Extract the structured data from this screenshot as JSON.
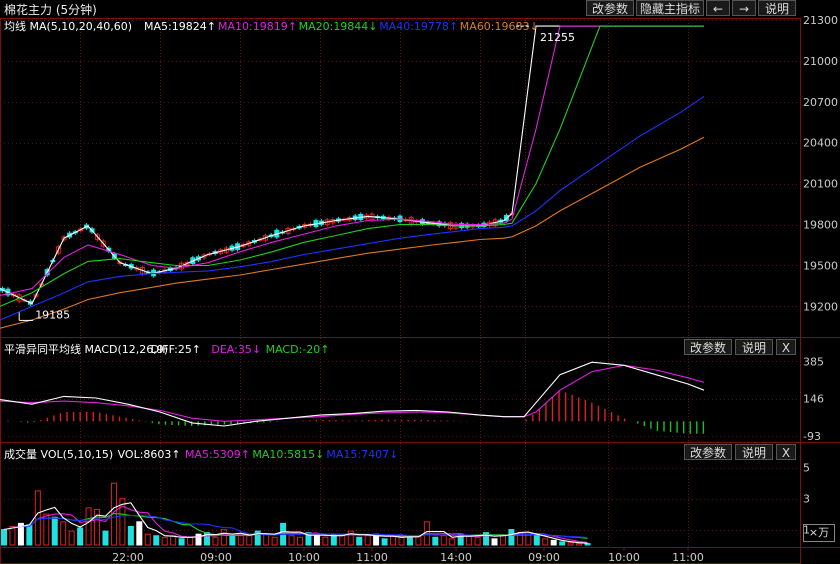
{
  "title": "棉花主力 (5分钟)",
  "toolbar": {
    "params": "改参数",
    "hide": "隐藏主指标",
    "left": "←",
    "right": "→",
    "help": "说明"
  },
  "panel_buttons": {
    "params": "改参数",
    "help": "说明",
    "close": "X"
  },
  "unit_label": "×万",
  "colors": {
    "white": "#ffffff",
    "magenta": "#e020e0",
    "green": "#20d020",
    "blue": "#2030ff",
    "orange": "#e07820",
    "up": "#e02020",
    "down": "#20e0e0",
    "macd_neg": "#20c020"
  },
  "chart_data": [
    {
      "type": "line",
      "name": "均线",
      "legend": [
        {
          "text": "均线 MA(5,10,20,40,60)",
          "color": "#ffffff"
        },
        {
          "text": "MA5:19824↑",
          "color": "#ffffff"
        },
        {
          "text": "MA10:19819↑",
          "color": "#e020e0"
        },
        {
          "text": "MA20:19844↓",
          "color": "#20d020"
        },
        {
          "text": "MA40:19778↑",
          "color": "#2030ff"
        },
        {
          "text": "MA60:19683↓",
          "color": "#e07820"
        }
      ],
      "y_ticks": [
        "21300",
        "21000",
        "20700",
        "20400",
        "20100",
        "19800",
        "19500",
        "19200"
      ],
      "ylim": [
        18990,
        21300
      ],
      "annotations": [
        {
          "text": "19185",
          "x": 0.034,
          "value": 19185
        },
        {
          "text": "21255",
          "x": 0.665,
          "value": 21255
        }
      ],
      "x": [
        0,
        0.04,
        0.08,
        0.11,
        0.15,
        0.19,
        0.22,
        0.26,
        0.3,
        0.34,
        0.38,
        0.42,
        0.46,
        0.5,
        0.54,
        0.57,
        0.6,
        0.63,
        0.64,
        0.67,
        0.7,
        0.75,
        0.8,
        0.85,
        0.88
      ],
      "series": [
        {
          "name": "MA5",
          "color": "#ffffff",
          "values": [
            19330,
            19220,
            19700,
            19790,
            19520,
            19440,
            19480,
            19580,
            19640,
            19720,
            19790,
            19830,
            19860,
            19840,
            19810,
            19790,
            19790,
            19830,
            19880,
            21255,
            21255,
            21255,
            21255,
            21255,
            21255
          ]
        },
        {
          "name": "MA10",
          "color": "#e020e0",
          "values": [
            19280,
            19330,
            19560,
            19650,
            19580,
            19500,
            19480,
            19520,
            19600,
            19670,
            19730,
            19790,
            19830,
            19840,
            19820,
            19800,
            19800,
            19810,
            19840,
            20500,
            21255,
            21255,
            21255,
            21255,
            21255
          ]
        },
        {
          "name": "MA20",
          "color": "#20d020",
          "values": [
            19200,
            19300,
            19440,
            19530,
            19550,
            19520,
            19500,
            19500,
            19540,
            19600,
            19670,
            19720,
            19770,
            19800,
            19800,
            19790,
            19790,
            19800,
            19810,
            20100,
            20500,
            21255,
            21255,
            21255,
            21255
          ]
        },
        {
          "name": "MA40",
          "color": "#2030ff",
          "values": [
            19100,
            19200,
            19300,
            19380,
            19420,
            19440,
            19450,
            19460,
            19490,
            19530,
            19580,
            19620,
            19660,
            19700,
            19730,
            19750,
            19770,
            19780,
            19790,
            19900,
            20050,
            20250,
            20450,
            20620,
            20740
          ]
        },
        {
          "name": "MA60",
          "color": "#e07820",
          "values": [
            19040,
            19100,
            19180,
            19250,
            19300,
            19340,
            19370,
            19400,
            19430,
            19470,
            19510,
            19550,
            19590,
            19620,
            19650,
            19670,
            19690,
            19700,
            19710,
            19790,
            19900,
            20060,
            20220,
            20350,
            20440
          ]
        }
      ]
    },
    {
      "type": "bar",
      "name": "平滑异同平均线",
      "legend": [
        {
          "text": "平滑异同平均线 MACD(12,26,9)",
          "color": "#ffffff"
        },
        {
          "text": "DIFF:25↑",
          "color": "#ffffff"
        },
        {
          "text": "DEA:35↓",
          "color": "#e020e0"
        },
        {
          "text": "MACD:-20↑",
          "color": "#20d020"
        }
      ],
      "y_ticks": [
        "385",
        "146",
        "-93"
      ],
      "ylim": [
        -120,
        420
      ],
      "x": [
        0,
        0.04,
        0.08,
        0.12,
        0.16,
        0.2,
        0.24,
        0.28,
        0.32,
        0.36,
        0.4,
        0.44,
        0.48,
        0.52,
        0.56,
        0.6,
        0.63,
        0.655,
        0.67,
        0.7,
        0.74,
        0.78,
        0.82,
        0.86,
        0.88
      ],
      "series": [
        {
          "name": "DIFF",
          "color": "#ffffff",
          "values": [
            140,
            110,
            160,
            150,
            110,
            60,
            -10,
            -30,
            0,
            20,
            40,
            50,
            65,
            70,
            60,
            40,
            30,
            30,
            120,
            300,
            380,
            360,
            300,
            240,
            200
          ]
        },
        {
          "name": "DEA",
          "color": "#e020e0",
          "values": [
            130,
            120,
            130,
            120,
            100,
            70,
            20,
            0,
            10,
            20,
            30,
            45,
            55,
            60,
            55,
            40,
            30,
            30,
            60,
            200,
            320,
            360,
            330,
            280,
            250
          ]
        },
        {
          "name": "MACD",
          "color": "#e02020",
          "values": [
            10,
            -10,
            60,
            60,
            20,
            -20,
            -30,
            -20,
            -10,
            0,
            10,
            5,
            10,
            10,
            5,
            0,
            0,
            0,
            60,
            200,
            120,
            20,
            -60,
            -80,
            -80
          ]
        }
      ]
    },
    {
      "type": "bar",
      "name": "成交量",
      "legend": [
        {
          "text": "成交量 VOL(5,10,15)",
          "color": "#ffffff"
        },
        {
          "text": "VOL:8603↑",
          "color": "#ffffff"
        },
        {
          "text": "MA5:5309↑",
          "color": "#e020e0"
        },
        {
          "text": "MA10:5815↓",
          "color": "#20d020"
        },
        {
          "text": "MA15:7407↓",
          "color": "#2030ff"
        }
      ],
      "y_ticks": [
        "5",
        "3",
        "1"
      ],
      "ylim": [
        0,
        5.5
      ],
      "x_ticks": [
        "22:00",
        "09:00",
        "10:00",
        "11:00",
        "14:00",
        "09:00",
        "10:00",
        "11:00"
      ],
      "x_tick_pos": [
        0.16,
        0.27,
        0.38,
        0.465,
        0.57,
        0.68,
        0.78,
        0.86
      ],
      "values": [
        1.0,
        1.2,
        1.4,
        1.3,
        3.5,
        2.0,
        1.8,
        1.5,
        0.9,
        1.1,
        2.4,
        2.3,
        0.9,
        4.0,
        3.0,
        1.2,
        1.5,
        0.7,
        0.6,
        0.5,
        0.6,
        0.4,
        0.5,
        0.7,
        0.8,
        0.5,
        1.0,
        0.6,
        0.7,
        0.6,
        0.9,
        0.7,
        0.5,
        1.4,
        0.6,
        0.5,
        0.8,
        0.6,
        0.5,
        0.7,
        0.6,
        0.9,
        0.5,
        0.6,
        0.7,
        0.4,
        0.6,
        0.5,
        0.5,
        0.6,
        1.5,
        0.5,
        0.6,
        0.4,
        0.7,
        0.6,
        0.5,
        0.8,
        0.4,
        0.6,
        1.0,
        0.8,
        0.7,
        0.6,
        0.4,
        0.3,
        0.2,
        0.15,
        0.1,
        0.1
      ]
    }
  ]
}
